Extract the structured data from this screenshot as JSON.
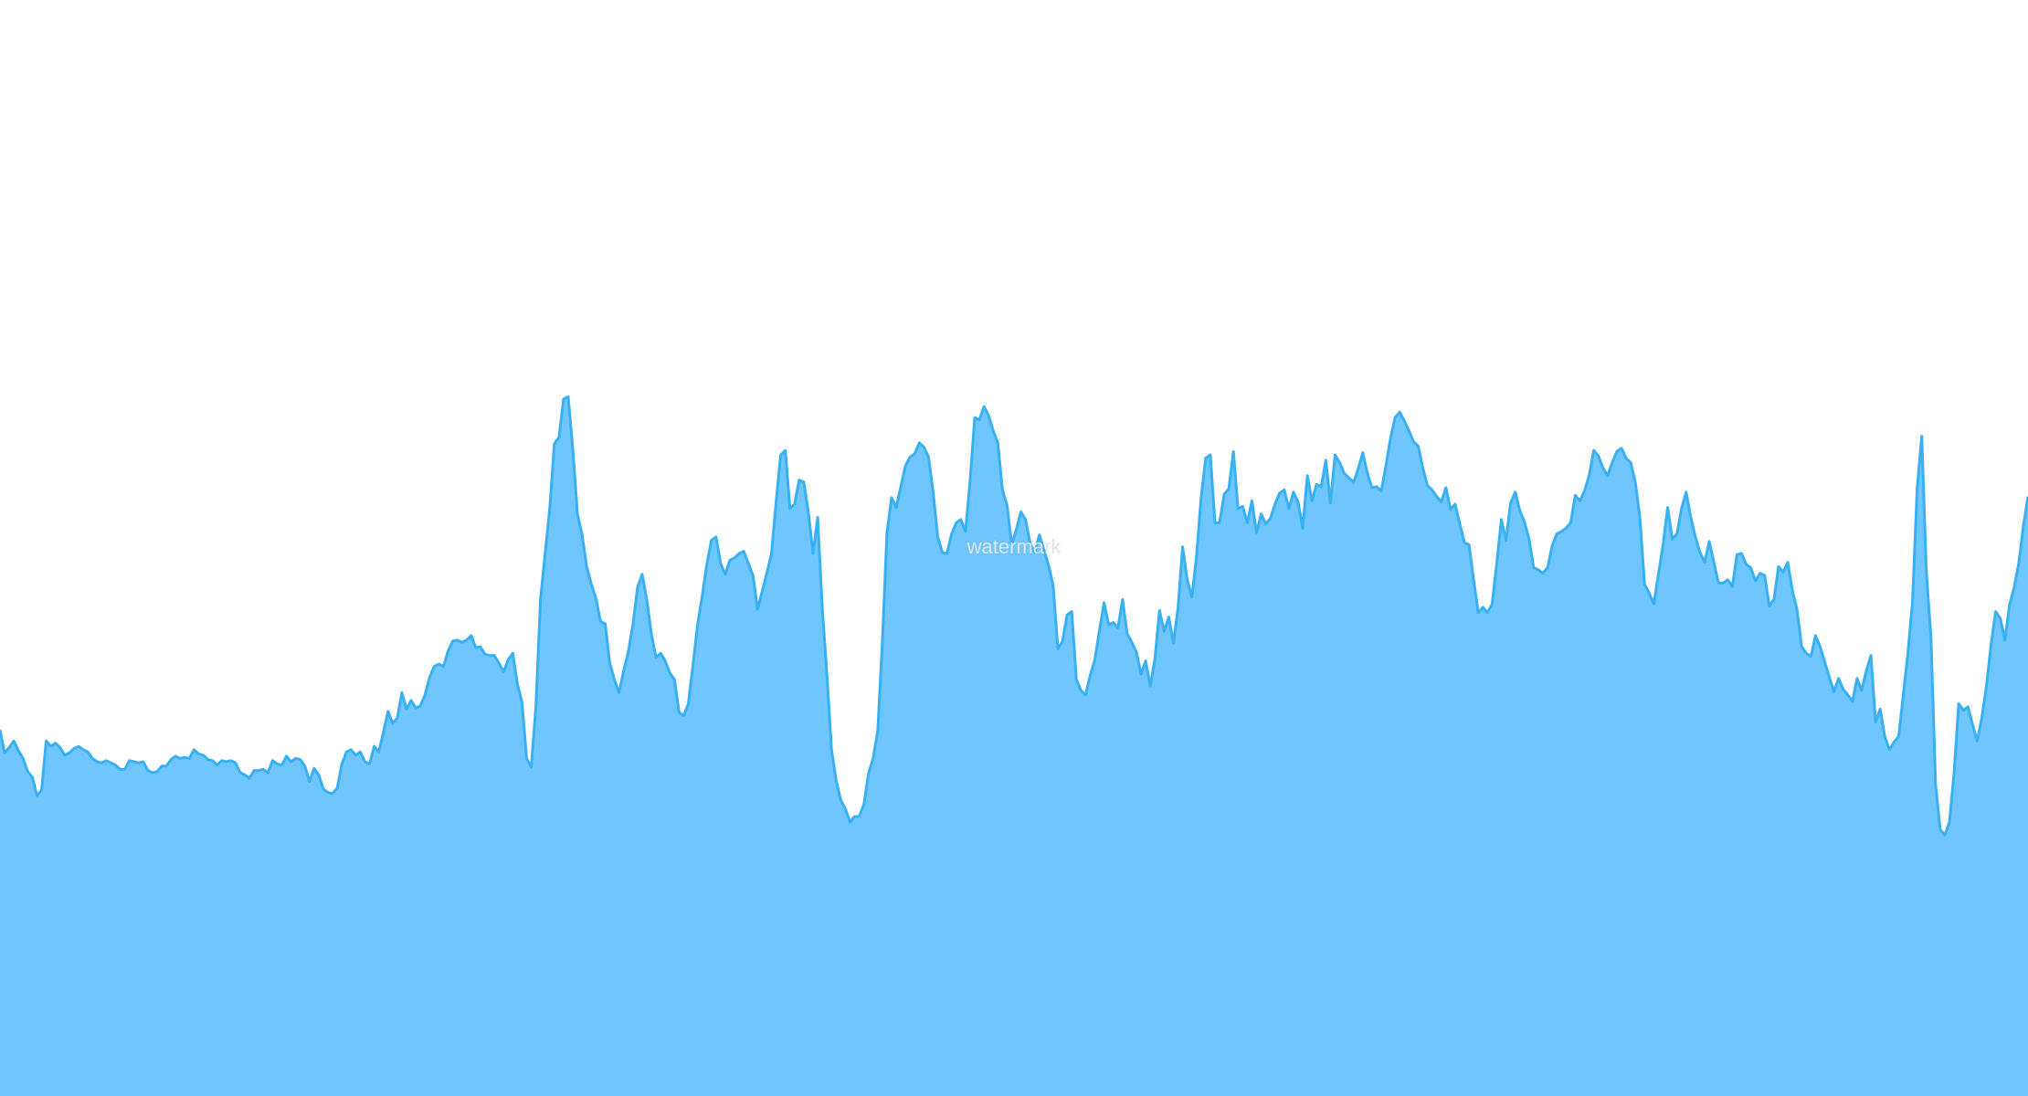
{
  "chart_data": {
    "type": "area",
    "title": "",
    "xlabel": "",
    "ylabel": "",
    "grid": false,
    "legend": "none",
    "ylim": [
      0,
      100
    ],
    "watermark": "watermark",
    "colors": {
      "background": "#ffffff",
      "fill": "#6fc6fd",
      "stroke": "#38b0f2",
      "watermark": "#dde4ea"
    },
    "y": [
      33.4,
      31.3,
      31.8,
      32.4,
      31.5,
      30.8,
      29.6,
      29.1,
      27.4,
      27.9,
      32.4,
      31.9,
      32.2,
      31.8,
      31.1,
      31.3,
      31.7,
      31.9,
      31.6,
      31.4,
      30.8,
      30.5,
      30.4,
      30.6,
      30.4,
      30.2,
      29.8,
      29.8,
      30.6,
      30.5,
      30.4,
      30.5,
      29.7,
      29.5,
      29.6,
      30.1,
      30.1,
      30.7,
      31.0,
      30.8,
      30.9,
      30.8,
      31.6,
      31.2,
      31.1,
      30.7,
      30.6,
      30.2,
      30.6,
      30.5,
      30.6,
      30.4,
      29.5,
      29.3,
      29.0,
      29.7,
      29.7,
      29.8,
      29.5,
      30.6,
      30.3,
      30.2,
      31.0,
      30.5,
      30.8,
      30.7,
      30.1,
      28.7,
      29.9,
      29.3,
      28.0,
      27.7,
      27.6,
      28.1,
      30.3,
      31.4,
      31.6,
      31.1,
      31.4,
      30.5,
      30.3,
      31.9,
      31.4,
      33.2,
      35.1,
      34.0,
      34.5,
      36.8,
      35.3,
      36.1,
      35.4,
      35.6,
      36.6,
      38.2,
      39.2,
      39.4,
      39.2,
      40.6,
      41.5,
      41.6,
      41.4,
      41.6,
      42.0,
      40.9,
      41.0,
      40.3,
      40.2,
      40.2,
      39.5,
      38.7,
      39.8,
      40.4,
      37.6,
      35.9,
      30.8,
      30.0,
      35.5,
      45.3,
      49.5,
      53.6,
      59.5,
      60.1,
      63.6,
      63.8,
      59.0,
      53.1,
      51.2,
      48.3,
      46.7,
      45.4,
      43.3,
      43.1,
      39.5,
      38.0,
      36.8,
      38.8,
      40.5,
      43.0,
      46.4,
      47.6,
      45.3,
      42.2,
      40.0,
      40.4,
      39.7,
      38.6,
      38.0,
      35.0,
      34.7,
      35.8,
      39.3,
      43.0,
      45.6,
      48.5,
      50.7,
      51.0,
      48.6,
      47.6,
      48.9,
      49.1,
      49.5,
      49.7,
      48.6,
      47.5,
      44.4,
      46.1,
      47.7,
      49.5,
      54.2,
      58.5,
      58.9,
      53.6,
      54.0,
      56.2,
      56.0,
      53.2,
      49.5,
      52.8,
      44.5,
      38.5,
      31.6,
      28.8,
      27.0,
      26.2,
      25.0,
      25.5,
      25.5,
      26.6,
      29.4,
      30.8,
      33.3,
      41.4,
      51.4,
      54.6,
      53.7,
      55.6,
      57.5,
      58.3,
      58.6,
      59.6,
      59.2,
      58.3,
      55.1,
      51.0,
      49.6,
      49.5,
      51.3,
      52.3,
      52.6,
      51.5,
      56.2,
      61.9,
      61.7,
      62.9,
      62.1,
      60.7,
      59.6,
      55.3,
      53.9,
      50.3,
      51.7,
      53.3,
      52.6,
      50.4,
      49.6,
      51.2,
      49.8,
      48.4,
      46.5,
      40.8,
      41.5,
      43.9,
      44.2,
      38.0,
      37.0,
      36.6,
      38.4,
      39.8,
      42.5,
      45.0,
      43.0,
      43.2,
      42.7,
      45.3,
      42.2,
      41.4,
      40.5,
      38.5,
      39.7,
      37.4,
      39.9,
      44.3,
      42.4,
      43.7,
      41.3,
      44.5,
      50.1,
      47.1,
      45.5,
      49.2,
      54.6,
      58.2,
      58.5,
      52.3,
      52.3,
      54.9,
      55.4,
      58.8,
      53.6,
      53.8,
      52.3,
      54.3,
      51.4,
      53.1,
      52.2,
      52.7,
      54.0,
      55.0,
      55.3,
      53.6,
      55.1,
      54.2,
      51.8,
      56.6,
      54.3,
      55.8,
      55.6,
      58.0,
      54.1,
      58.5,
      57.8,
      56.8,
      56.4,
      56.0,
      57.2,
      58.7,
      56.8,
      55.5,
      55.6,
      55.2,
      57.5,
      60.0,
      61.9,
      62.4,
      61.6,
      60.7,
      59.7,
      59.3,
      57.3,
      55.7,
      55.3,
      54.7,
      54.2,
      55.5,
      53.5,
      54.0,
      52.2,
      50.5,
      50.3,
      47.1,
      44.1,
      44.6,
      44.1,
      44.9,
      48.6,
      52.6,
      50.7,
      54.1,
      55.1,
      53.4,
      52.4,
      50.8,
      48.2,
      48.0,
      47.7,
      48.2,
      50.2,
      51.3,
      51.5,
      51.8,
      52.3,
      54.8,
      54.3,
      55.2,
      56.6,
      58.9,
      58.4,
      57.3,
      56.6,
      57.8,
      58.8,
      59.1,
      58.2,
      57.8,
      56.0,
      52.7,
      46.7,
      45.9,
      44.9,
      47.6,
      50.3,
      53.7,
      50.8,
      51.3,
      53.6,
      55.1,
      52.8,
      51.0,
      49.6,
      48.7,
      50.6,
      48.7,
      46.8,
      46.8,
      47.1,
      46.5,
      49.4,
      49.5,
      48.5,
      48.2,
      47.0,
      47.7,
      47.5,
      44.7,
      45.3,
      48.3,
      47.8,
      48.7,
      46.1,
      44.4,
      41.0,
      40.4,
      40.1,
      42.0,
      41.0,
      39.6,
      38.2,
      36.9,
      38.1,
      37.1,
      36.6,
      36.0,
      38.1,
      37.0,
      38.8,
      40.2,
      34.1,
      35.3,
      32.8,
      31.6,
      32.3,
      32.8,
      36.6,
      40.4,
      45.1,
      55.4,
      60.2,
      47.8,
      41.8,
      28.4,
      24.3,
      23.8,
      25.0,
      29.5,
      35.8,
      35.2,
      35.5,
      33.9,
      32.4,
      34.5,
      37.4,
      41.2,
      44.2,
      43.6,
      41.6,
      44.8,
      46.4,
      48.6,
      52.0,
      54.7
    ]
  }
}
